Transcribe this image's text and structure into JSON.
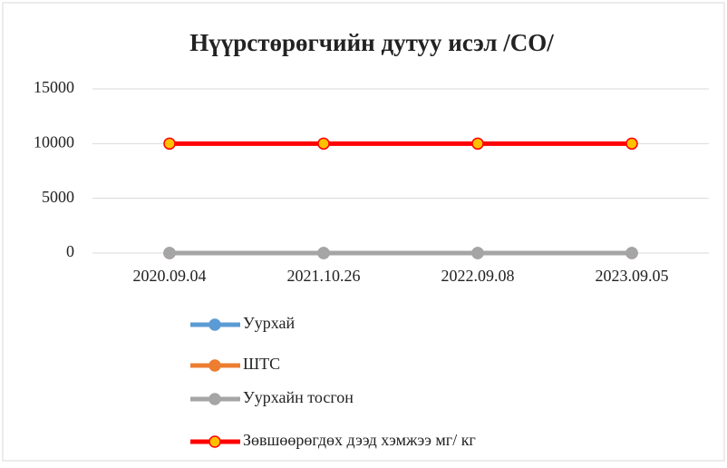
{
  "chart_data": {
    "type": "line",
    "title": "Нүүрстөрөгчийн дутуу исэл /CO/",
    "categories": [
      "2020.09.04",
      "2021.10.26",
      "2022.09.08",
      "2023.09.05"
    ],
    "series": [
      {
        "name": "Уурхай",
        "color": "#5b9bd5",
        "values": [
          0,
          0,
          0,
          0
        ]
      },
      {
        "name": "ШТС",
        "color": "#ed7d31",
        "values": [
          0,
          0,
          0,
          0
        ]
      },
      {
        "name": "Уурхайн тосгон",
        "color": "#a5a5a5",
        "values": [
          0,
          0,
          0,
          0
        ]
      },
      {
        "name": "Зөвшөөрөгдөх дээд хэмжээ мг/ кг",
        "color": "#ff0000",
        "marker_fill": "#ffc000",
        "values": [
          10000,
          10000,
          10000,
          10000
        ]
      }
    ],
    "ylim": [
      0,
      15000
    ],
    "yticks": [
      0,
      5000,
      10000,
      15000
    ],
    "grid": true,
    "legend": "bottom"
  }
}
